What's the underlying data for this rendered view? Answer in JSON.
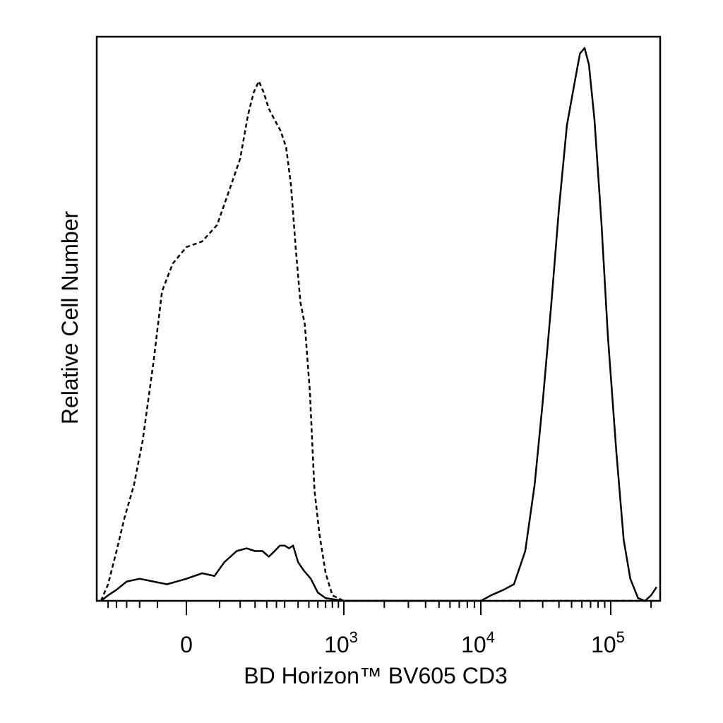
{
  "chart_data": {
    "type": "line",
    "title": "",
    "xlabel": "BD Horizon™ BV605 CD3",
    "ylabel": "Relative Cell Number",
    "x_scale": "biexponential",
    "x_tick_labels": [
      {
        "value": 0,
        "base": "0",
        "exp": ""
      },
      {
        "value": 1000,
        "base": "10",
        "exp": "3"
      },
      {
        "value": 10000,
        "base": "10",
        "exp": "4"
      },
      {
        "value": 100000,
        "base": "10",
        "exp": "5"
      }
    ],
    "xlim": [
      -300,
      220000
    ],
    "ylim": [
      0,
      100
    ],
    "grid": false,
    "legend": "none",
    "series": [
      {
        "style": "dashed",
        "points": [
          [
            -300,
            0
          ],
          [
            -250,
            3
          ],
          [
            -200,
            9
          ],
          [
            -160,
            15
          ],
          [
            -120,
            21
          ],
          [
            -90,
            29
          ],
          [
            -60,
            43
          ],
          [
            -40,
            56
          ],
          [
            -20,
            61
          ],
          [
            0,
            64
          ],
          [
            20,
            65
          ],
          [
            45,
            68
          ],
          [
            70,
            74
          ],
          [
            100,
            80
          ],
          [
            125,
            88
          ],
          [
            145,
            92
          ],
          [
            165,
            94
          ],
          [
            185,
            92
          ],
          [
            210,
            89
          ],
          [
            240,
            87
          ],
          [
            275,
            85
          ],
          [
            310,
            82
          ],
          [
            345,
            75
          ],
          [
            380,
            64
          ],
          [
            420,
            54
          ],
          [
            460,
            50
          ],
          [
            510,
            38
          ],
          [
            560,
            20
          ],
          [
            620,
            12
          ],
          [
            700,
            5
          ],
          [
            800,
            1
          ],
          [
            1000,
            0
          ],
          [
            10000,
            0
          ],
          [
            100000,
            0
          ],
          [
            220000,
            0
          ]
        ]
      },
      {
        "style": "solid",
        "points": [
          [
            -300,
            0
          ],
          [
            -250,
            1
          ],
          [
            -200,
            2
          ],
          [
            -150,
            3.5
          ],
          [
            -100,
            4
          ],
          [
            -60,
            3.5
          ],
          [
            -30,
            3
          ],
          [
            0,
            4
          ],
          [
            20,
            5
          ],
          [
            40,
            4.5
          ],
          [
            60,
            7
          ],
          [
            90,
            9
          ],
          [
            120,
            9.5
          ],
          [
            150,
            9
          ],
          [
            180,
            9
          ],
          [
            210,
            8
          ],
          [
            240,
            9
          ],
          [
            270,
            10
          ],
          [
            300,
            10
          ],
          [
            330,
            9.5
          ],
          [
            360,
            10
          ],
          [
            400,
            7
          ],
          [
            450,
            5.5
          ],
          [
            520,
            4
          ],
          [
            600,
            1.5
          ],
          [
            700,
            0.5
          ],
          [
            1000,
            0
          ],
          [
            5000,
            0
          ],
          [
            10000,
            0
          ],
          [
            12000,
            1
          ],
          [
            15000,
            2
          ],
          [
            18000,
            3
          ],
          [
            22000,
            9
          ],
          [
            26000,
            21
          ],
          [
            30000,
            36
          ],
          [
            35000,
            54
          ],
          [
            40000,
            71
          ],
          [
            46000,
            86
          ],
          [
            53000,
            94
          ],
          [
            58000,
            99
          ],
          [
            63000,
            100
          ],
          [
            68000,
            97
          ],
          [
            75000,
            87
          ],
          [
            85000,
            68
          ],
          [
            95000,
            48
          ],
          [
            110000,
            27
          ],
          [
            125000,
            11
          ],
          [
            140000,
            4
          ],
          [
            160000,
            0.5
          ],
          [
            180000,
            0
          ],
          [
            200000,
            1
          ],
          [
            220000,
            2.5
          ]
        ]
      }
    ]
  }
}
